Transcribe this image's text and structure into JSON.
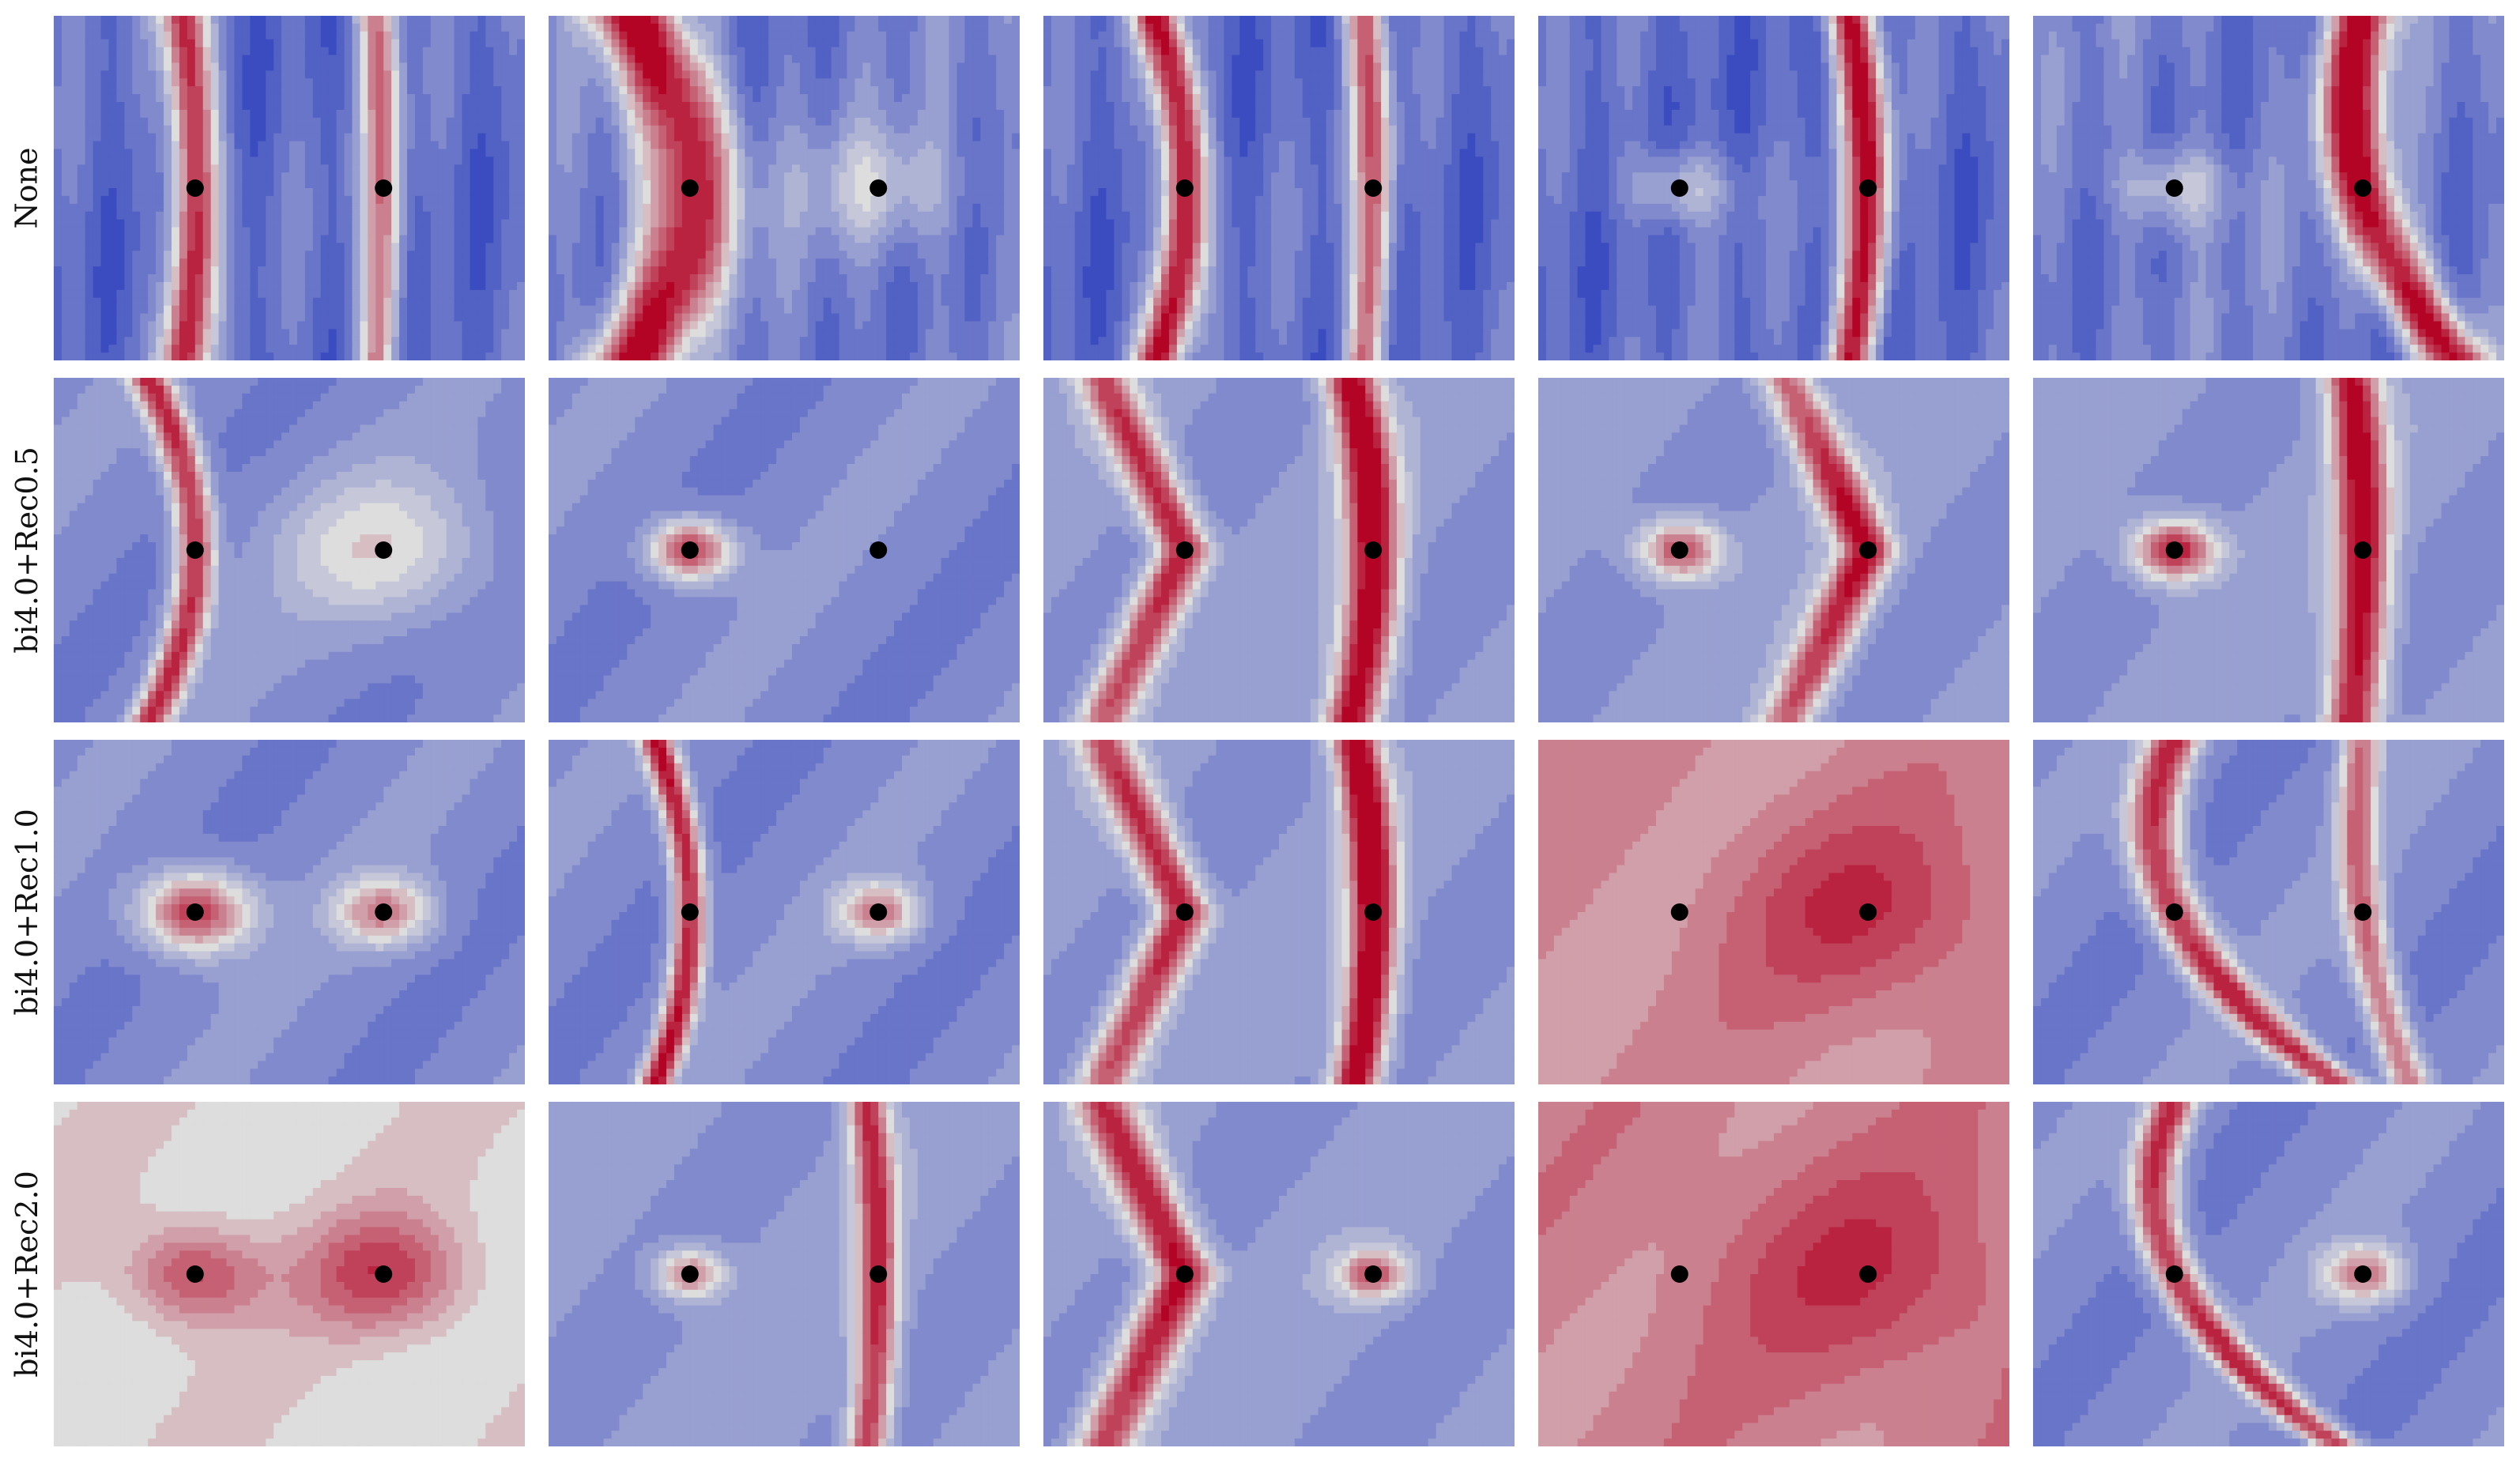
{
  "chart_data": {
    "type": "heatmap",
    "description_of_grid": "4 rows x 5 columns of contour maps; colormap coolwarm (blue low, red high); two black markers per panel",
    "colormap": {
      "low": "#3b4cc0",
      "mid": "#dddddd",
      "high": "#b40426"
    },
    "marker_color": "#000000",
    "row_labels": [
      "None",
      "bi4.0+Rec0.5",
      "bi4.0+Rec1.0",
      "bi4.0+Rec2.0"
    ],
    "columns": 5,
    "rows": [
      {
        "label": "None",
        "panels": [
          {
            "base": 0.15,
            "features": [
              {
                "kind": "ridge",
                "at": 0,
                "curve": 0.05,
                "amp": 0.85,
                "w": 0.035
              },
              {
                "kind": "ridge",
                "at": 1,
                "curve": 0.03,
                "amp": 0.6,
                "w": 0.03
              }
            ],
            "stripes": true
          },
          {
            "base": 0.2,
            "features": [
              {
                "kind": "ridge",
                "at": 0,
                "curve": 0.25,
                "amp": 0.85,
                "w": 0.07
              },
              {
                "kind": "blob",
                "at": 1,
                "amp": 0.25,
                "w": 0.12
              }
            ],
            "stripes": true
          },
          {
            "base": 0.15,
            "features": [
              {
                "kind": "ridge",
                "at": 0,
                "curve": 0.12,
                "amp": 0.9,
                "w": 0.035
              },
              {
                "kind": "ridge",
                "at": 1,
                "curve": 0.04,
                "amp": 0.65,
                "w": 0.03
              }
            ],
            "stripes": true
          },
          {
            "base": 0.15,
            "features": [
              {
                "kind": "blob",
                "at": 0,
                "amp": 0.3,
                "w": 0.08
              },
              {
                "kind": "ridge",
                "at": 1,
                "curve": 0.08,
                "amp": 0.85,
                "w": 0.035
              }
            ],
            "stripes": true
          },
          {
            "base": 0.2,
            "features": [
              {
                "kind": "blob",
                "at": 0,
                "amp": 0.3,
                "w": 0.08
              },
              {
                "kind": "ridge",
                "at": 1,
                "curve": -0.2,
                "amp": 0.85,
                "w": 0.05
              }
            ],
            "stripes": true
          }
        ]
      },
      {
        "label": "bi4.0+Rec0.5",
        "panels": [
          {
            "base": 0.25,
            "features": [
              {
                "kind": "ridge",
                "at": 0,
                "curve": 0.2,
                "amp": 0.7,
                "w": 0.03
              },
              {
                "kind": "blob",
                "at": 1,
                "amp": 0.3,
                "w": 0.15
              }
            ],
            "stripes": false
          },
          {
            "base": 0.25,
            "features": [
              {
                "kind": "blob",
                "at": 0,
                "amp": 0.7,
                "w": 0.06
              }
            ],
            "stripes": false
          },
          {
            "base": 0.3,
            "features": [
              {
                "kind": "vee",
                "at": 0,
                "amp": 0.75,
                "w": 0.04
              },
              {
                "kind": "ridge",
                "at": 1,
                "curve": 0.1,
                "amp": 0.8,
                "w": 0.04
              }
            ],
            "stripes": false
          },
          {
            "base": 0.3,
            "features": [
              {
                "kind": "blob",
                "at": 0,
                "amp": 0.6,
                "w": 0.06
              },
              {
                "kind": "vee",
                "at": 1,
                "amp": 0.75,
                "w": 0.04
              }
            ],
            "stripes": false
          },
          {
            "base": 0.3,
            "features": [
              {
                "kind": "blob",
                "at": 0,
                "amp": 0.75,
                "w": 0.06
              },
              {
                "kind": "ridge",
                "at": 1,
                "curve": 0.05,
                "amp": 0.75,
                "w": 0.04
              }
            ],
            "stripes": false
          }
        ]
      },
      {
        "label": "bi4.0+Rec1.0",
        "panels": [
          {
            "base": 0.25,
            "features": [
              {
                "kind": "blob",
                "at": 0,
                "amp": 0.7,
                "w": 0.08
              },
              {
                "kind": "blob",
                "at": 1,
                "amp": 0.5,
                "w": 0.07
              }
            ],
            "stripes": false
          },
          {
            "base": 0.25,
            "features": [
              {
                "kind": "ridge",
                "at": 0,
                "curve": 0.15,
                "amp": 0.75,
                "w": 0.025
              },
              {
                "kind": "blob",
                "at": 1,
                "amp": 0.5,
                "w": 0.06
              }
            ],
            "stripes": false
          },
          {
            "base": 0.3,
            "features": [
              {
                "kind": "vee",
                "at": 0,
                "amp": 0.75,
                "w": 0.04
              },
              {
                "kind": "ridge",
                "at": 1,
                "curve": 0.08,
                "amp": 0.85,
                "w": 0.035
              }
            ],
            "stripes": false
          },
          {
            "base": 0.72,
            "features": [
              {
                "kind": "blob",
                "at": 1,
                "amp": 0.2,
                "w": 0.2
              }
            ],
            "stripes": false
          },
          {
            "base": 0.25,
            "features": [
              {
                "kind": "ridge",
                "at": 0,
                "curve": -0.35,
                "amp": 0.7,
                "w": 0.04
              },
              {
                "kind": "ridge",
                "at": 1,
                "curve": -0.1,
                "amp": 0.55,
                "w": 0.03
              }
            ],
            "stripes": false
          }
        ]
      },
      {
        "label": "bi4.0+Rec2.0",
        "panels": [
          {
            "base": 0.55,
            "features": [
              {
                "kind": "blob",
                "at": 0,
                "amp": 0.35,
                "w": 0.1
              },
              {
                "kind": "blob",
                "at": 1,
                "amp": 0.35,
                "w": 0.12
              }
            ],
            "stripes": false
          },
          {
            "base": 0.3,
            "features": [
              {
                "kind": "blob",
                "at": 0,
                "amp": 0.5,
                "w": 0.05
              },
              {
                "kind": "ridge",
                "at": 1,
                "curve": 0.05,
                "amp": 0.65,
                "w": 0.03
              }
            ],
            "stripes": false
          },
          {
            "base": 0.3,
            "features": [
              {
                "kind": "vee",
                "at": 0,
                "amp": 0.8,
                "w": 0.045
              },
              {
                "kind": "blob",
                "at": 1,
                "amp": 0.55,
                "w": 0.05
              }
            ],
            "stripes": false
          },
          {
            "base": 0.74,
            "features": [
              {
                "kind": "blob",
                "at": 1,
                "amp": 0.18,
                "w": 0.22
              }
            ],
            "stripes": false
          },
          {
            "base": 0.25,
            "features": [
              {
                "kind": "ridge",
                "at": 0,
                "curve": -0.35,
                "amp": 0.7,
                "w": 0.035
              },
              {
                "kind": "blob",
                "at": 1,
                "amp": 0.5,
                "w": 0.06
              }
            ],
            "stripes": false
          }
        ]
      }
    ]
  }
}
